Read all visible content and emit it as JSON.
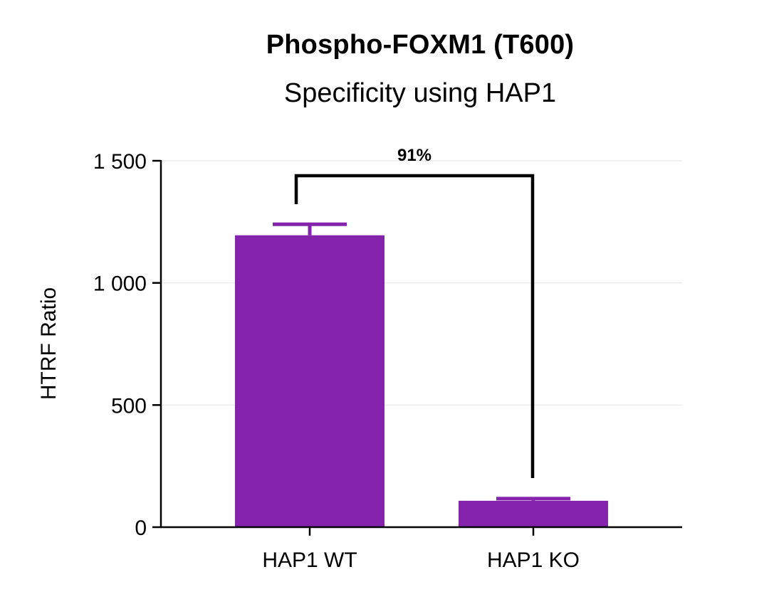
{
  "chart_data": {
    "type": "bar",
    "title": "Phospho-FOXM1 (T600)",
    "subtitle": "Specificity using HAP1",
    "xlabel": "",
    "ylabel": "HTRF Ratio",
    "ylim": [
      0,
      1500
    ],
    "yticks": [
      0,
      500,
      1000,
      1500
    ],
    "ytick_labels": [
      "0",
      "500",
      "1 000",
      "1 500"
    ],
    "grid": true,
    "categories": [
      "HAP1 WT",
      "HAP1 KO"
    ],
    "values": [
      1195,
      108
    ],
    "error_upper": [
      1240,
      117
    ],
    "bar_color": "#8424ad",
    "annotations": [
      {
        "type": "bracket",
        "from": "HAP1 WT",
        "to": "HAP1 KO",
        "label": "91%"
      }
    ]
  }
}
